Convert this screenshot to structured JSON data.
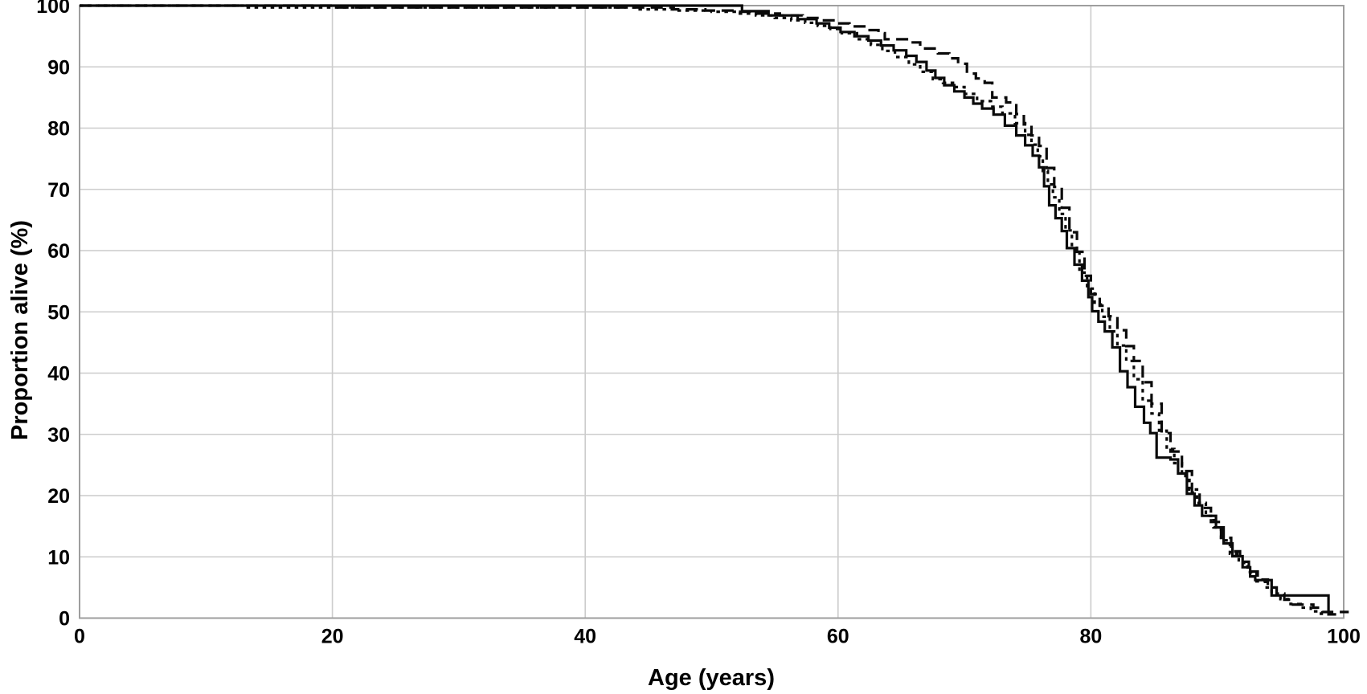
{
  "chart_data": {
    "type": "line",
    "subtype": "kaplan-meier-step-survival",
    "title": "",
    "xlabel": "Age (years)",
    "ylabel": "Proportion alive (%)",
    "xlim": [
      0,
      100
    ],
    "ylim": [
      0,
      100
    ],
    "x_ticks": [
      0,
      20,
      40,
      60,
      80,
      100
    ],
    "y_ticks": [
      0,
      10,
      20,
      30,
      40,
      50,
      60,
      70,
      80,
      90,
      100
    ],
    "grid": true,
    "legend": "none",
    "line_color": "#0a0a0a",
    "grid_color": "#cccccc",
    "frame_color": "#9e9e9e",
    "series": [
      {
        "name": "survival-curve-short-dash",
        "style": "short-dash",
        "points": [
          [
            0,
            100
          ],
          [
            13,
            99.7
          ],
          [
            44,
            99.4
          ],
          [
            47,
            99.2
          ],
          [
            50,
            99.0
          ],
          [
            52,
            98.7
          ],
          [
            53.5,
            98.4
          ],
          [
            55,
            98.0
          ],
          [
            56.3,
            97.6
          ],
          [
            57.4,
            97.2
          ],
          [
            58.4,
            96.7
          ],
          [
            59.4,
            96.2
          ],
          [
            60.3,
            95.5
          ],
          [
            61.5,
            94.5
          ],
          [
            62.6,
            93.6
          ],
          [
            63.5,
            92.6
          ],
          [
            64.5,
            91.6
          ],
          [
            65.6,
            90.4
          ],
          [
            66.5,
            89.2
          ],
          [
            67.5,
            88.0
          ],
          [
            68.3,
            87.4
          ],
          [
            69.2,
            86.7
          ],
          [
            70.0,
            85.6
          ],
          [
            71.0,
            84.4
          ],
          [
            72.1,
            83.5
          ],
          [
            73.0,
            82.4
          ],
          [
            74.0,
            80.8
          ],
          [
            74.8,
            78.9
          ],
          [
            75.3,
            77.3
          ],
          [
            75.8,
            75.4
          ],
          [
            76.2,
            73.0
          ],
          [
            76.6,
            70.8
          ],
          [
            77.0,
            68.7
          ],
          [
            77.5,
            66.0
          ],
          [
            78.0,
            63.3
          ],
          [
            78.5,
            60.3
          ],
          [
            79.1,
            56.4
          ],
          [
            79.7,
            53.8
          ],
          [
            80.3,
            51.2
          ],
          [
            80.9,
            49.2
          ],
          [
            81.5,
            46.8
          ],
          [
            82.1,
            44.5
          ],
          [
            82.8,
            42.0
          ],
          [
            83.4,
            39.0
          ],
          [
            84.1,
            35.5
          ],
          [
            84.8,
            33.4
          ],
          [
            85.4,
            30.6
          ],
          [
            86.0,
            27.6
          ],
          [
            86.6,
            25.3
          ],
          [
            87.2,
            23.2
          ],
          [
            87.8,
            21.0
          ],
          [
            88.4,
            18.8
          ],
          [
            89.1,
            16.7
          ],
          [
            89.7,
            14.8
          ],
          [
            90.3,
            12.7
          ],
          [
            91.0,
            10.5
          ],
          [
            91.7,
            9.0
          ],
          [
            92.4,
            7.5
          ],
          [
            93.1,
            6.0
          ],
          [
            93.8,
            5.0
          ],
          [
            94.3,
            4.0
          ],
          [
            95.0,
            3.1
          ],
          [
            95.8,
            2.3
          ],
          [
            96.6,
            1.7
          ],
          [
            97.4,
            1.1
          ],
          [
            98.2,
            0.7
          ],
          [
            99.2,
            0.5
          ]
        ]
      },
      {
        "name": "survival-curve-long-dash",
        "style": "long-dash",
        "points": [
          [
            0,
            100
          ],
          [
            20,
            99.7
          ],
          [
            47,
            99.4
          ],
          [
            49.5,
            99.2
          ],
          [
            51.8,
            99.0
          ],
          [
            53.6,
            98.7
          ],
          [
            55.4,
            98.4
          ],
          [
            57.2,
            98.0
          ],
          [
            58.6,
            97.6
          ],
          [
            59.8,
            97.1
          ],
          [
            60.9,
            96.6
          ],
          [
            62.2,
            96.0
          ],
          [
            63.2,
            95.5
          ],
          [
            63.7,
            94.5
          ],
          [
            65.7,
            94.0
          ],
          [
            66.5,
            93.0
          ],
          [
            67.9,
            92.2
          ],
          [
            68.8,
            91.4
          ],
          [
            69.5,
            90.5
          ],
          [
            70.2,
            88.9
          ],
          [
            70.9,
            88.1
          ],
          [
            71.6,
            87.4
          ],
          [
            72.2,
            85.0
          ],
          [
            73.3,
            84.2
          ],
          [
            74.1,
            82.3
          ],
          [
            74.7,
            80.6
          ],
          [
            75.3,
            78.8
          ],
          [
            75.9,
            77.1
          ],
          [
            76.5,
            73.5
          ],
          [
            77.1,
            70.4
          ],
          [
            77.7,
            67.0
          ],
          [
            78.3,
            63.0
          ],
          [
            78.9,
            59.8
          ],
          [
            79.5,
            55.9
          ],
          [
            80.0,
            52.9
          ],
          [
            80.7,
            51.0
          ],
          [
            81.4,
            49.3
          ],
          [
            82.1,
            47.0
          ],
          [
            82.8,
            44.4
          ],
          [
            83.4,
            42.0
          ],
          [
            84.1,
            38.5
          ],
          [
            84.8,
            35.0
          ],
          [
            85.6,
            30.2
          ],
          [
            86.3,
            27.2
          ],
          [
            87.2,
            24.0
          ],
          [
            88.0,
            20.5
          ],
          [
            88.6,
            18.0
          ],
          [
            89.5,
            15.7
          ],
          [
            90.3,
            13.1
          ],
          [
            91.1,
            10.9
          ],
          [
            91.8,
            9.2
          ],
          [
            92.5,
            7.6
          ],
          [
            93.2,
            6.3
          ],
          [
            94.0,
            5.0
          ],
          [
            94.7,
            4.0
          ],
          [
            95.3,
            3.0
          ],
          [
            95.8,
            2.2
          ],
          [
            97.6,
            1.7
          ],
          [
            98.3,
            1.0
          ],
          [
            100.4,
            1.0
          ]
        ]
      },
      {
        "name": "survival-curve-solid",
        "style": "solid",
        "points": [
          [
            0,
            100
          ],
          [
            52.4,
            99.1
          ],
          [
            54.5,
            98.4
          ],
          [
            56.8,
            97.8
          ],
          [
            58.3,
            97.1
          ],
          [
            59.3,
            96.4
          ],
          [
            60.2,
            95.7
          ],
          [
            61.3,
            95.0
          ],
          [
            62.4,
            94.3
          ],
          [
            63.4,
            93.5
          ],
          [
            64.4,
            92.7
          ],
          [
            65.4,
            91.8
          ],
          [
            66.2,
            90.8
          ],
          [
            67.0,
            89.4
          ],
          [
            67.7,
            88.2
          ],
          [
            68.4,
            87.0
          ],
          [
            69.2,
            86.0
          ],
          [
            70.0,
            85.0
          ],
          [
            70.7,
            84.0
          ],
          [
            71.4,
            83.2
          ],
          [
            72.3,
            82.2
          ],
          [
            73.2,
            80.4
          ],
          [
            74.1,
            78.8
          ],
          [
            74.8,
            77.2
          ],
          [
            75.4,
            75.5
          ],
          [
            75.9,
            73.6
          ],
          [
            76.3,
            70.5
          ],
          [
            76.7,
            67.4
          ],
          [
            77.2,
            65.3
          ],
          [
            77.7,
            63.2
          ],
          [
            78.1,
            60.4
          ],
          [
            78.7,
            57.7
          ],
          [
            79.3,
            55.1
          ],
          [
            79.8,
            52.4
          ],
          [
            80.1,
            50.1
          ],
          [
            80.6,
            48.4
          ],
          [
            81.1,
            46.8
          ],
          [
            81.7,
            44.2
          ],
          [
            82.3,
            40.3
          ],
          [
            82.9,
            37.7
          ],
          [
            83.5,
            34.5
          ],
          [
            84.2,
            31.9
          ],
          [
            84.7,
            30.2
          ],
          [
            85.2,
            26.2
          ],
          [
            86.3,
            25.9
          ],
          [
            86.9,
            23.6
          ],
          [
            87.6,
            20.3
          ],
          [
            88.2,
            18.4
          ],
          [
            88.8,
            16.7
          ],
          [
            89.9,
            14.8
          ],
          [
            90.5,
            12.2
          ],
          [
            91.2,
            10.1
          ],
          [
            92.0,
            8.3
          ],
          [
            92.6,
            6.8
          ],
          [
            93.0,
            6.2
          ],
          [
            94.3,
            3.7
          ],
          [
            98.8,
            0.6
          ],
          [
            99.4,
            0.6
          ]
        ]
      }
    ]
  }
}
